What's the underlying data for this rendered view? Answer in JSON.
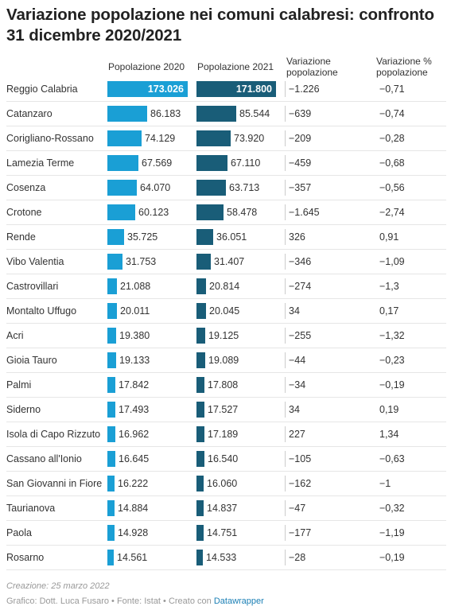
{
  "title": "Variazione popolazione nei comuni calabresi: confronto 31 dicembre 2020/2021",
  "columns": {
    "c2020": "Popolazione 2020",
    "c2021": "Popolazione 2021",
    "var_line1": "Variazione",
    "var_line2": "popolazione",
    "varp_line1": "Variazione %",
    "varp_line2": "popolazione"
  },
  "colors": {
    "bar_2020": "#1a9fd5",
    "bar_2021": "#195d78"
  },
  "chart_data": {
    "type": "table",
    "xlim": [
      0,
      173026
    ],
    "columns": [
      "Popolazione 2020",
      "Popolazione 2021",
      "Variazione popolazione",
      "Variazione % popolazione"
    ],
    "rows": [
      {
        "comune": "Reggio Calabria",
        "p2020": 173026,
        "p2021": 171800,
        "p2020_label": "173.026",
        "p2021_label": "171.800",
        "var": "−1.226",
        "varp": "−0,71"
      },
      {
        "comune": "Catanzaro",
        "p2020": 86183,
        "p2021": 85544,
        "p2020_label": "86.183",
        "p2021_label": "85.544",
        "var": "−639",
        "varp": "−0,74"
      },
      {
        "comune": "Corigliano-Rossano",
        "p2020": 74129,
        "p2021": 73920,
        "p2020_label": "74.129",
        "p2021_label": "73.920",
        "var": "−209",
        "varp": "−0,28"
      },
      {
        "comune": "Lamezia Terme",
        "p2020": 67569,
        "p2021": 67110,
        "p2020_label": "67.569",
        "p2021_label": "67.110",
        "var": "−459",
        "varp": "−0,68"
      },
      {
        "comune": "Cosenza",
        "p2020": 64070,
        "p2021": 63713,
        "p2020_label": "64.070",
        "p2021_label": "63.713",
        "var": "−357",
        "varp": "−0,56"
      },
      {
        "comune": "Crotone",
        "p2020": 60123,
        "p2021": 58478,
        "p2020_label": "60.123",
        "p2021_label": "58.478",
        "var": "−1.645",
        "varp": "−2,74"
      },
      {
        "comune": "Rende",
        "p2020": 35725,
        "p2021": 36051,
        "p2020_label": "35.725",
        "p2021_label": "36.051",
        "var": "326",
        "varp": "0,91"
      },
      {
        "comune": "Vibo Valentia",
        "p2020": 31753,
        "p2021": 31407,
        "p2020_label": "31.753",
        "p2021_label": "31.407",
        "var": "−346",
        "varp": "−1,09"
      },
      {
        "comune": "Castrovillari",
        "p2020": 21088,
        "p2021": 20814,
        "p2020_label": "21.088",
        "p2021_label": "20.814",
        "var": "−274",
        "varp": "−1,3"
      },
      {
        "comune": "Montalto Uffugo",
        "p2020": 20011,
        "p2021": 20045,
        "p2020_label": "20.011",
        "p2021_label": "20.045",
        "var": "34",
        "varp": "0,17"
      },
      {
        "comune": "Acri",
        "p2020": 19380,
        "p2021": 19125,
        "p2020_label": "19.380",
        "p2021_label": "19.125",
        "var": "−255",
        "varp": "−1,32"
      },
      {
        "comune": "Gioia Tauro",
        "p2020": 19133,
        "p2021": 19089,
        "p2020_label": "19.133",
        "p2021_label": "19.089",
        "var": "−44",
        "varp": "−0,23"
      },
      {
        "comune": "Palmi",
        "p2020": 17842,
        "p2021": 17808,
        "p2020_label": "17.842",
        "p2021_label": "17.808",
        "var": "−34",
        "varp": "−0,19"
      },
      {
        "comune": "Siderno",
        "p2020": 17493,
        "p2021": 17527,
        "p2020_label": "17.493",
        "p2021_label": "17.527",
        "var": "34",
        "varp": "0,19"
      },
      {
        "comune": "Isola di Capo Rizzuto",
        "p2020": 16962,
        "p2021": 17189,
        "p2020_label": "16.962",
        "p2021_label": "17.189",
        "var": "227",
        "varp": "1,34"
      },
      {
        "comune": "Cassano all'Ionio",
        "p2020": 16645,
        "p2021": 16540,
        "p2020_label": "16.645",
        "p2021_label": "16.540",
        "var": "−105",
        "varp": "−0,63"
      },
      {
        "comune": "San Giovanni in Fiore",
        "p2020": 16222,
        "p2021": 16060,
        "p2020_label": "16.222",
        "p2021_label": "16.060",
        "var": "−162",
        "varp": "−1"
      },
      {
        "comune": "Taurianova",
        "p2020": 14884,
        "p2021": 14837,
        "p2020_label": "14.884",
        "p2021_label": "14.837",
        "var": "−47",
        "varp": "−0,32"
      },
      {
        "comune": "Paola",
        "p2020": 14928,
        "p2021": 14751,
        "p2020_label": "14.928",
        "p2021_label": "14.751",
        "var": "−177",
        "varp": "−1,19"
      },
      {
        "comune": "Rosarno",
        "p2020": 14561,
        "p2021": 14533,
        "p2020_label": "14.561",
        "p2021_label": "14.533",
        "var": "−28",
        "varp": "−0,19"
      }
    ]
  },
  "footer": {
    "created": "Creazione: 25 marzo 2022",
    "credits": "Grafico: Dott. Luca Fusaro • Fonte: Istat • Creato con ",
    "datawrapper": "Datawrapper"
  }
}
